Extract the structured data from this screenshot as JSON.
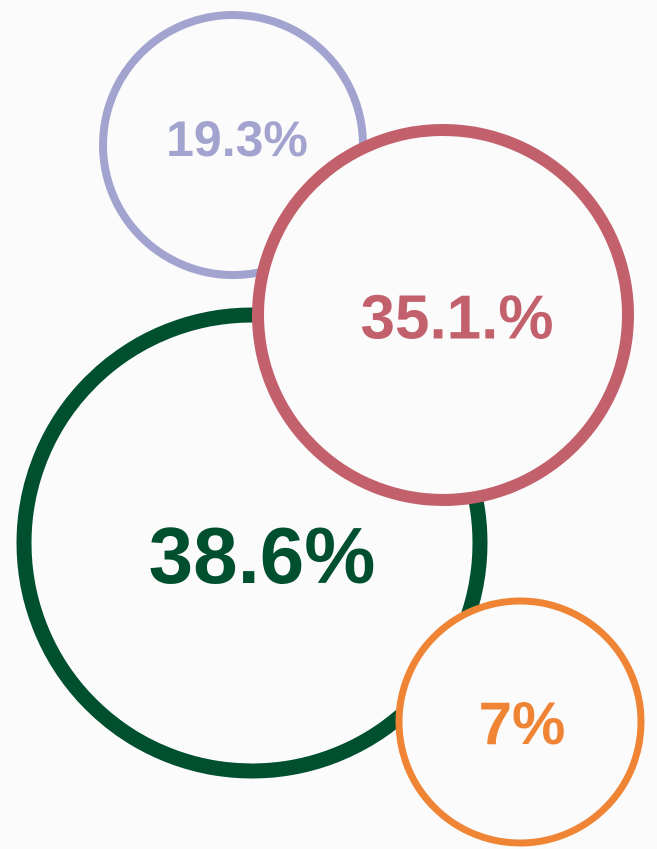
{
  "chart_data": {
    "type": "bubble",
    "values": [
      38.6,
      19.3,
      35.1,
      7
    ],
    "value_labels": [
      "38.6%",
      "19.3%",
      "35.1.%",
      "7%"
    ],
    "colors": [
      "#005030",
      "#a3a3cf",
      "#c2616c",
      "#ee8434"
    ]
  }
}
